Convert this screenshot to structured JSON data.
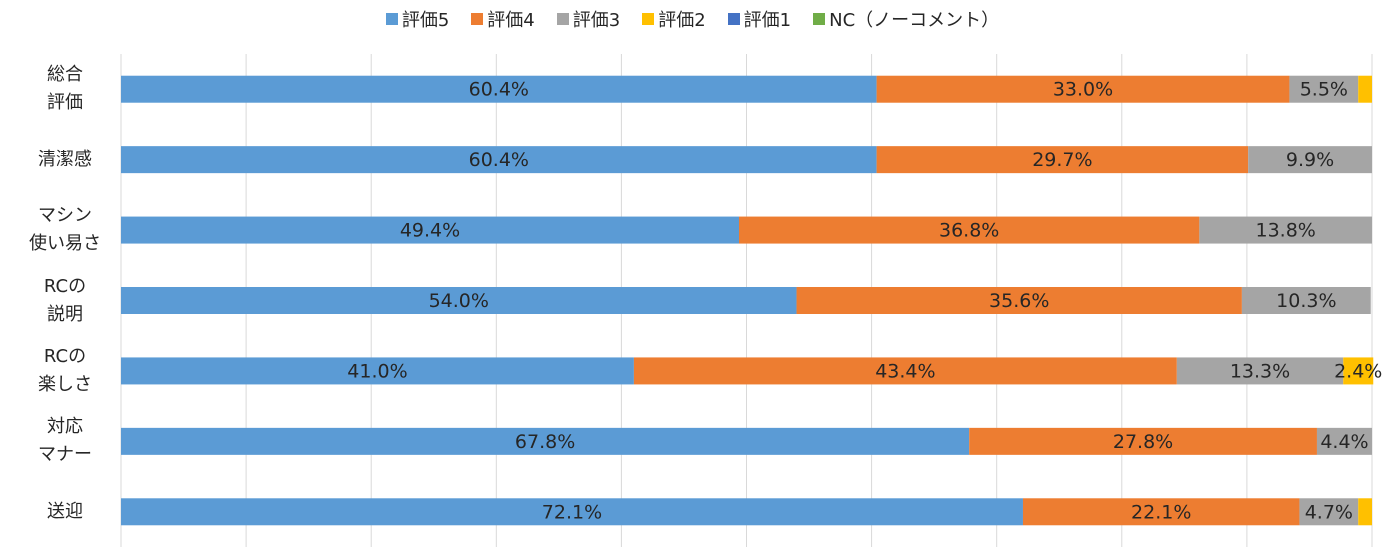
{
  "chart_data": {
    "type": "stacked_barh",
    "categories": [
      "総合\n評価",
      "清潔感",
      "マシン\n使い易さ",
      "RCの\n説明",
      "RCの\n楽しさ",
      "対応\nマナー",
      "送迎"
    ],
    "series": [
      {
        "name": "評価5",
        "color": "#5b9bd5",
        "values": [
          60.4,
          60.4,
          49.4,
          54.0,
          41.0,
          67.8,
          72.1
        ],
        "value_labels": [
          "60.4%",
          "60.4%",
          "49.4%",
          "54.0%",
          "41.0%",
          "67.8%",
          "72.1%"
        ]
      },
      {
        "name": "評価4",
        "color": "#ed7d31",
        "values": [
          33.0,
          29.7,
          36.8,
          35.6,
          43.4,
          27.8,
          22.1
        ],
        "value_labels": [
          "33.0%",
          "29.7%",
          "36.8%",
          "35.6%",
          "43.4%",
          "27.8%",
          "22.1%"
        ]
      },
      {
        "name": "評価3",
        "color": "#a5a5a5",
        "values": [
          5.5,
          9.9,
          13.8,
          10.3,
          13.3,
          4.4,
          4.7
        ],
        "value_labels": [
          "5.5%",
          "9.9%",
          "13.8%",
          "10.3%",
          "13.3%",
          "4.4%",
          "4.7%"
        ]
      },
      {
        "name": "評価2",
        "color": "#ffc000",
        "values": [
          1.1,
          null,
          null,
          null,
          2.4,
          null,
          1.1
        ],
        "value_labels": [
          null,
          null,
          null,
          null,
          "2.4%",
          null,
          null
        ]
      },
      {
        "name": "評価1",
        "color": "#4472c4",
        "values": [
          null,
          null,
          null,
          null,
          null,
          null,
          null
        ]
      },
      {
        "name": "NC（ノーコメント）",
        "color": "#70ad47",
        "values": [
          null,
          null,
          null,
          null,
          null,
          null,
          null
        ]
      }
    ],
    "xlim": [
      0,
      100
    ],
    "xticks": [
      0,
      10,
      20,
      30,
      40,
      50,
      60,
      70,
      80,
      90,
      100
    ],
    "grid": true,
    "legend": "top"
  }
}
